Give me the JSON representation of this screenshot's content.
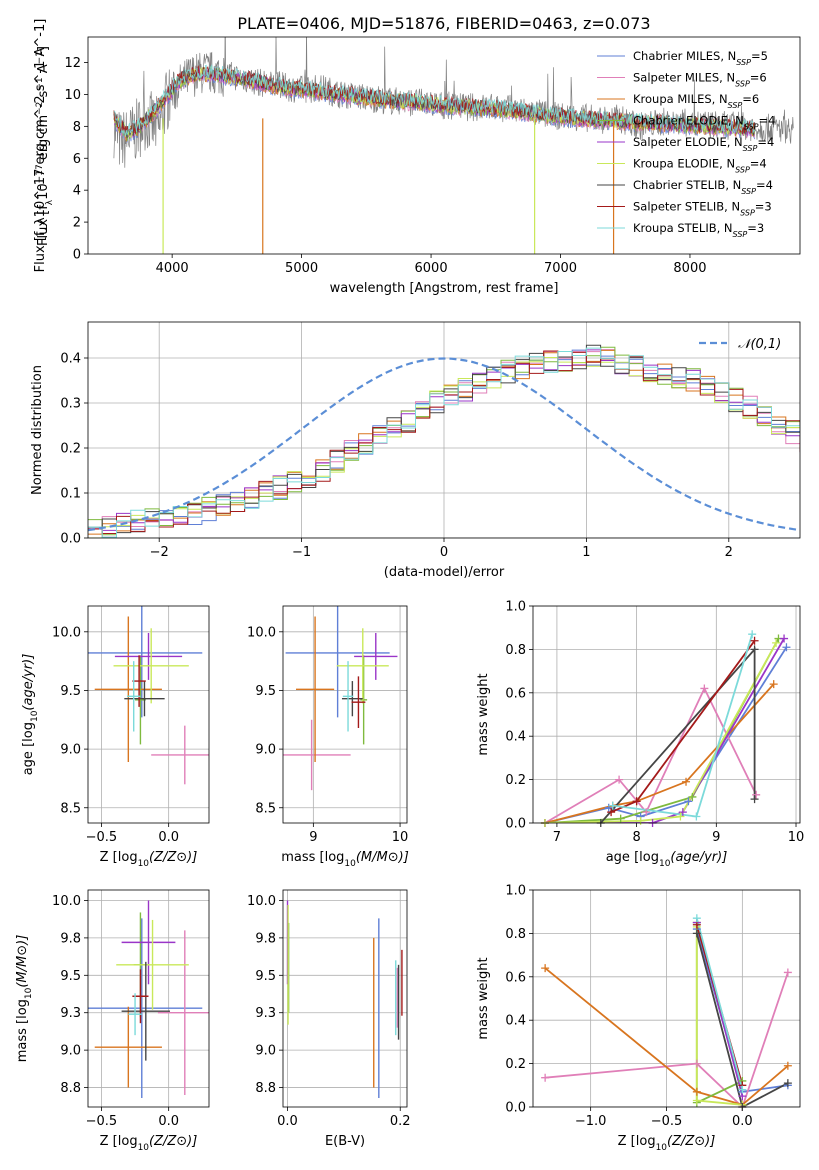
{
  "colors": {
    "chabrier_miles": "#5f7fd6",
    "salpeter_miles": "#e07fb8",
    "kroupa_miles": "#d8751f",
    "chabrier_elodie": "#7fba3e",
    "salpeter_elodie": "#9a35c8",
    "kroupa_elodie": "#c9e85a",
    "chabrier_stelib": "#454545",
    "salpeter_stelib": "#a41a1a",
    "kroupa_stelib": "#7cdada"
  },
  "chart_data": [
    {
      "id": "spectrum",
      "type": "line",
      "title": "PLATE=0406, MJD=51876, FIBERID=0463, z=0.073",
      "xlabel": "wavelength [Angstrom, rest frame]",
      "ylabel": "Flux [f_λ10^-17 erg cm^-2 s^-1 A^-1]",
      "xlim": [
        3350,
        8850
      ],
      "ylim": [
        0,
        13.6
      ],
      "xticks": [
        4000,
        5000,
        6000,
        7000,
        8000
      ],
      "yticks": [
        0,
        2,
        4,
        6,
        8,
        10,
        12
      ],
      "grid": false,
      "legend_position": "top-right",
      "data_x": [
        3550,
        3600,
        3700,
        3800,
        3900,
        3950,
        4050,
        4150,
        4250,
        4350,
        4450,
        4550,
        4700,
        4850,
        5000,
        5150,
        5300,
        5500,
        5700,
        5900,
        6100,
        6300,
        6500,
        6700,
        6850,
        7000,
        7150,
        7300,
        7450,
        7600,
        7800,
        8000,
        8200,
        8400,
        8600,
        8800
      ],
      "data_y": [
        8.0,
        7.0,
        7.5,
        8.5,
        7.8,
        9.5,
        10.5,
        11.2,
        11.4,
        11.3,
        11.2,
        11.0,
        10.7,
        10.5,
        10.3,
        10.4,
        10.0,
        9.8,
        9.6,
        9.5,
        9.3,
        9.2,
        9.2,
        9.0,
        8.8,
        8.6,
        8.6,
        8.4,
        8.5,
        8.0,
        8.3,
        8.2,
        8.1,
        8.0,
        7.9,
        7.8
      ],
      "model_x": [
        3550,
        3650,
        3750,
        3850,
        3950,
        4050,
        4150,
        4300,
        4450,
        4600,
        4750,
        4900,
        5100,
        5300,
        5500,
        5700,
        5900,
        6100,
        6300,
        6500,
        6700,
        6900,
        7100,
        7300,
        7500,
        7700,
        7900,
        8100,
        8300,
        8500
      ],
      "model_y": [
        8.5,
        7.5,
        8.0,
        8.8,
        9.8,
        10.8,
        11.2,
        11.3,
        11.1,
        10.9,
        10.6,
        10.4,
        10.2,
        10.0,
        9.8,
        9.6,
        9.5,
        9.3,
        9.2,
        9.1,
        8.9,
        8.7,
        8.5,
        8.4,
        8.3,
        8.2,
        8.1,
        8.0,
        7.9,
        7.8
      ],
      "series": [
        {
          "name": "Chabrier MILES, N_SSP=5",
          "color_key": "chabrier_miles"
        },
        {
          "name": "Salpeter MILES, N_SSP=6",
          "color_key": "salpeter_miles"
        },
        {
          "name": "Kroupa MILES, N_SSP=6",
          "color_key": "kroupa_miles"
        },
        {
          "name": "Chabrier ELODIE, N_SSP=4",
          "color_key": "chabrier_elodie"
        },
        {
          "name": "Salpeter ELODIE, N_SSP=4",
          "color_key": "salpeter_elodie"
        },
        {
          "name": "Kroupa ELODIE, N_SSP=4",
          "color_key": "kroupa_elodie"
        },
        {
          "name": "Chabrier STELIB, N_SSP=4",
          "color_key": "chabrier_stelib"
        },
        {
          "name": "Salpeter STELIB, N_SSP=3",
          "color_key": "salpeter_stelib"
        },
        {
          "name": "Kroupa STELIB, N_SSP=3",
          "color_key": "kroupa_stelib"
        }
      ],
      "drops": [
        {
          "x": 3930,
          "color_key": "kroupa_elodie"
        },
        {
          "x": 4700,
          "color_key": "kroupa_miles"
        },
        {
          "x": 6800,
          "color_key": "kroupa_elodie"
        },
        {
          "x": 7410,
          "color_key": "kroupa_miles"
        }
      ]
    },
    {
      "id": "histogram",
      "type": "line",
      "xlabel": "(data-model)/error",
      "ylabel": "Normed distribution",
      "xlim": [
        -2.5,
        2.5
      ],
      "ylim": [
        0,
        0.48
      ],
      "xticks": [
        -2,
        -1,
        0,
        1,
        2
      ],
      "yticks": [
        0.0,
        0.1,
        0.2,
        0.3,
        0.4
      ],
      "grid": true,
      "legend_position": "top-right",
      "bin_width": 0.1,
      "bins_start": -2.5,
      "bin_values": [
        0.02,
        0.025,
        0.03,
        0.035,
        0.04,
        0.045,
        0.05,
        0.055,
        0.063,
        0.07,
        0.08,
        0.09,
        0.1,
        0.112,
        0.124,
        0.137,
        0.15,
        0.17,
        0.19,
        0.21,
        0.225,
        0.245,
        0.262,
        0.28,
        0.3,
        0.315,
        0.33,
        0.345,
        0.358,
        0.37,
        0.378,
        0.388,
        0.392,
        0.398,
        0.4,
        0.402,
        0.398,
        0.392,
        0.385,
        0.375,
        0.368,
        0.36,
        0.35,
        0.338,
        0.322,
        0.308,
        0.29,
        0.272,
        0.255,
        0.235,
        0.218,
        0.2,
        0.182,
        0.165,
        0.15,
        0.135,
        0.118,
        0.105,
        0.092,
        0.08,
        0.07,
        0.062,
        0.055,
        0.048,
        0.042,
        0.036,
        0.032,
        0.028,
        0.025,
        0.022
      ],
      "normal_label": "𝒩(0,1)"
    },
    {
      "id": "age-vs-z",
      "type": "scatter",
      "xlabel": "Z [log10(Z/Z⊙)]",
      "ylabel": "age  [log10(age/yr)]",
      "xlim": [
        -0.6,
        0.3
      ],
      "ylim": [
        8.37,
        10.22
      ],
      "xticks": [
        -0.5,
        0.0
      ],
      "yticks": [
        8.5,
        9.0,
        9.5,
        10.0
      ],
      "grid": true,
      "points": [
        {
          "x": -0.2,
          "y": 9.82,
          "xerr": 0.45,
          "yerr": 0.55,
          "color_key": "chabrier_miles"
        },
        {
          "x": 0.12,
          "y": 8.95,
          "xerr": 0.25,
          "yerr": 0.25,
          "color_key": "salpeter_miles"
        },
        {
          "x": -0.3,
          "y": 9.51,
          "xerr": 0.25,
          "yerr": 0.62,
          "color_key": "kroupa_miles"
        },
        {
          "x": -0.21,
          "y": 9.42,
          "xerr": 0.04,
          "yerr": 0.38,
          "color_key": "chabrier_elodie"
        },
        {
          "x": -0.15,
          "y": 9.79,
          "xerr": 0.25,
          "yerr": 0.2,
          "color_key": "salpeter_elodie"
        },
        {
          "x": -0.13,
          "y": 9.71,
          "xerr": 0.28,
          "yerr": 0.32,
          "color_key": "kroupa_elodie"
        },
        {
          "x": -0.18,
          "y": 9.43,
          "xerr": 0.15,
          "yerr": 0.15,
          "color_key": "chabrier_stelib"
        },
        {
          "x": -0.22,
          "y": 9.58,
          "xerr": 0.05,
          "yerr": 0.22,
          "color_key": "salpeter_stelib"
        },
        {
          "x": -0.26,
          "y": 9.45,
          "xerr": 0.05,
          "yerr": 0.3,
          "color_key": "kroupa_stelib"
        }
      ]
    },
    {
      "id": "age-vs-mass",
      "type": "scatter",
      "xlabel": "mass [log10(M/M⊙)]",
      "ylabel": "",
      "xlim": [
        8.65,
        10.08
      ],
      "ylim": [
        8.37,
        10.22
      ],
      "xticks": [
        9,
        10
      ],
      "yticks": [
        8.5,
        9.0,
        9.5,
        10.0
      ],
      "grid": true,
      "points": [
        {
          "x": 9.28,
          "y": 9.82,
          "xerr": 0.6,
          "yerr": 0.55,
          "color_key": "chabrier_miles"
        },
        {
          "x": 8.98,
          "y": 8.95,
          "xerr": 0.45,
          "yerr": 0.3,
          "color_key": "salpeter_miles"
        },
        {
          "x": 9.02,
          "y": 9.51,
          "xerr": 0.22,
          "yerr": 0.62,
          "color_key": "kroupa_miles"
        },
        {
          "x": 9.58,
          "y": 9.42,
          "xerr": 0.04,
          "yerr": 0.38,
          "color_key": "chabrier_elodie"
        },
        {
          "x": 9.72,
          "y": 9.79,
          "xerr": 0.25,
          "yerr": 0.2,
          "color_key": "salpeter_elodie"
        },
        {
          "x": 9.57,
          "y": 9.71,
          "xerr": 0.3,
          "yerr": 0.32,
          "color_key": "kroupa_elodie"
        },
        {
          "x": 9.45,
          "y": 9.43,
          "xerr": 0.12,
          "yerr": 0.15,
          "color_key": "chabrier_stelib"
        },
        {
          "x": 9.52,
          "y": 9.4,
          "xerr": 0.08,
          "yerr": 0.22,
          "color_key": "salpeter_stelib"
        },
        {
          "x": 9.4,
          "y": 9.45,
          "xerr": 0.06,
          "yerr": 0.3,
          "color_key": "kroupa_stelib"
        }
      ]
    },
    {
      "id": "massweight-vs-age",
      "type": "line",
      "xlabel": "age  [log10(age/yr)]",
      "ylabel": "mass weight",
      "xlim": [
        6.7,
        10.05
      ],
      "ylim": [
        0.0,
        1.0
      ],
      "xticks": [
        7,
        8,
        9,
        10
      ],
      "yticks": [
        0.0,
        0.2,
        0.4,
        0.6,
        0.8,
        1.0
      ],
      "grid": true,
      "series": [
        {
          "name": "Chabrier MILES",
          "color_key": "chabrier_miles",
          "x": [
            6.85,
            7.65,
            8.05,
            8.65,
            9.88
          ],
          "y": [
            0.0,
            0.07,
            0.03,
            0.1,
            0.81
          ]
        },
        {
          "name": "Salpeter MILES",
          "color_key": "salpeter_miles",
          "x": [
            6.85,
            7.78,
            8.12,
            8.85,
            9.5
          ],
          "y": [
            0.0,
            0.2,
            0.05,
            0.62,
            0.13
          ]
        },
        {
          "name": "Kroupa MILES",
          "color_key": "kroupa_miles",
          "x": [
            6.85,
            7.7,
            8.0,
            8.62,
            9.72
          ],
          "y": [
            0.0,
            0.08,
            0.1,
            0.19,
            0.64
          ]
        },
        {
          "name": "Chabrier ELODIE",
          "color_key": "chabrier_elodie",
          "x": [
            6.85,
            7.8,
            8.7,
            9.78
          ],
          "y": [
            0.0,
            0.02,
            0.12,
            0.85
          ]
        },
        {
          "name": "Salpeter ELODIE",
          "color_key": "salpeter_elodie",
          "x": [
            6.85,
            8.2,
            8.58,
            9.85
          ],
          "y": [
            0.0,
            0.0,
            0.05,
            0.85
          ]
        },
        {
          "name": "Kroupa ELODIE",
          "color_key": "kroupa_elodie",
          "x": [
            6.85,
            8.05,
            8.55,
            9.75
          ],
          "y": [
            0.0,
            0.01,
            0.03,
            0.83
          ]
        },
        {
          "name": "Chabrier STELIB",
          "color_key": "chabrier_stelib",
          "x": [
            7.55,
            9.48,
            9.48
          ],
          "y": [
            0.0,
            0.8,
            0.11
          ]
        },
        {
          "name": "Salpeter STELIB",
          "color_key": "salpeter_stelib",
          "x": [
            7.68,
            8.0,
            9.48
          ],
          "y": [
            0.05,
            0.1,
            0.84
          ]
        },
        {
          "name": "Kroupa STELIB",
          "color_key": "kroupa_stelib",
          "x": [
            7.7,
            8.75,
            9.45
          ],
          "y": [
            0.08,
            0.03,
            0.87
          ]
        }
      ]
    },
    {
      "id": "mass-vs-z",
      "type": "scatter",
      "xlabel": "Z [log10(Z/Z⊙)]",
      "ylabel": "mass [log10(M/M⊙)]",
      "xlim": [
        -0.6,
        0.3
      ],
      "ylim": [
        8.62,
        10.07
      ],
      "xticks": [
        -0.5,
        0.0
      ],
      "yticks": [
        8.75,
        9.0,
        9.25,
        9.5,
        9.75,
        10.0
      ],
      "grid": true,
      "points": [
        {
          "x": -0.2,
          "y": 9.28,
          "xerr": 0.45,
          "yerr": 0.6,
          "color_key": "chabrier_miles"
        },
        {
          "x": 0.12,
          "y": 9.25,
          "xerr": 0.2,
          "yerr": 0.55,
          "color_key": "salpeter_miles"
        },
        {
          "x": -0.3,
          "y": 9.02,
          "xerr": 0.25,
          "yerr": 0.27,
          "color_key": "kroupa_miles"
        },
        {
          "x": -0.21,
          "y": 9.57,
          "xerr": 0.05,
          "yerr": 0.35,
          "color_key": "chabrier_elodie"
        },
        {
          "x": -0.15,
          "y": 9.72,
          "xerr": 0.2,
          "yerr": 0.28,
          "color_key": "salpeter_elodie"
        },
        {
          "x": -0.12,
          "y": 9.57,
          "xerr": 0.27,
          "yerr": 0.3,
          "color_key": "kroupa_elodie"
        },
        {
          "x": -0.17,
          "y": 9.26,
          "xerr": 0.18,
          "yerr": 0.33,
          "color_key": "chabrier_stelib"
        },
        {
          "x": -0.21,
          "y": 9.36,
          "xerr": 0.06,
          "yerr": 0.18,
          "color_key": "salpeter_stelib"
        },
        {
          "x": -0.25,
          "y": 9.24,
          "xerr": 0.05,
          "yerr": 0.14,
          "color_key": "kroupa_stelib"
        }
      ]
    },
    {
      "id": "mass-vs-ebv",
      "type": "scatter",
      "xlabel": "E(B-V)",
      "ylabel": "",
      "xlim": [
        -0.008,
        0.212
      ],
      "ylim": [
        8.62,
        10.07
      ],
      "xticks": [
        0.0,
        0.2
      ],
      "yticks": [
        8.75,
        9.0,
        9.25,
        9.5,
        9.75,
        10.0
      ],
      "grid": true,
      "points": [
        {
          "x": 0.162,
          "y": 9.28,
          "xerr": 0.0,
          "yerr": 0.6,
          "color_key": "chabrier_miles"
        },
        {
          "x": 0.195,
          "y": 9.35,
          "xerr": 0.0,
          "yerr": 0.2,
          "color_key": "salpeter_miles"
        },
        {
          "x": 0.153,
          "y": 9.25,
          "xerr": 0.0,
          "yerr": 0.5,
          "color_key": "kroupa_miles"
        },
        {
          "x": 0.002,
          "y": 9.55,
          "xerr": 0.0,
          "yerr": 0.3,
          "color_key": "chabrier_elodie"
        },
        {
          "x": 0.0,
          "y": 9.72,
          "xerr": 0.0,
          "yerr": 0.28,
          "color_key": "salpeter_elodie"
        },
        {
          "x": 0.001,
          "y": 9.57,
          "xerr": 0.0,
          "yerr": 0.4,
          "color_key": "kroupa_elodie"
        },
        {
          "x": 0.197,
          "y": 9.32,
          "xerr": 0.0,
          "yerr": 0.25,
          "color_key": "chabrier_stelib"
        },
        {
          "x": 0.203,
          "y": 9.45,
          "xerr": 0.0,
          "yerr": 0.22,
          "color_key": "salpeter_stelib"
        },
        {
          "x": 0.192,
          "y": 9.35,
          "xerr": 0.0,
          "yerr": 0.25,
          "color_key": "kroupa_stelib"
        }
      ]
    },
    {
      "id": "massweight-vs-z",
      "type": "line",
      "xlabel": "Z [log10(Z/Z⊙)]",
      "ylabel": "mass weight",
      "xlim": [
        -1.38,
        0.38
      ],
      "ylim": [
        0.0,
        1.0
      ],
      "xticks": [
        -1.0,
        -0.5,
        0.0
      ],
      "yticks": [
        0.0,
        0.2,
        0.4,
        0.6,
        0.8,
        1.0
      ],
      "grid": true,
      "series": [
        {
          "name": "Chabrier MILES",
          "color_key": "chabrier_miles",
          "x": [
            -0.3,
            0.0,
            0.3
          ],
          "y": [
            0.82,
            0.07,
            0.1
          ]
        },
        {
          "name": "Salpeter MILES",
          "color_key": "salpeter_miles",
          "x": [
            -1.3,
            -0.3,
            0.0,
            0.3
          ],
          "y": [
            0.135,
            0.2,
            0.0,
            0.62
          ]
        },
        {
          "name": "Kroupa MILES",
          "color_key": "kroupa_miles",
          "x": [
            -1.3,
            -0.3,
            0.0,
            0.3
          ],
          "y": [
            0.64,
            0.07,
            0.01,
            0.19
          ]
        },
        {
          "name": "Chabrier ELODIE",
          "color_key": "chabrier_elodie",
          "x": [
            -0.3,
            -0.3,
            0.0
          ],
          "y": [
            0.85,
            0.02,
            0.12
          ]
        },
        {
          "name": "Salpeter ELODIE",
          "color_key": "salpeter_elodie",
          "x": [
            -0.3,
            0.0
          ],
          "y": [
            0.85,
            0.05
          ]
        },
        {
          "name": "Kroupa ELODIE",
          "color_key": "kroupa_elodie",
          "x": [
            -0.3,
            -0.3,
            0.0
          ],
          "y": [
            0.83,
            0.03,
            0.01
          ]
        },
        {
          "name": "Chabrier STELIB",
          "color_key": "chabrier_stelib",
          "x": [
            -0.3,
            0.0,
            0.3
          ],
          "y": [
            0.8,
            0.0,
            0.11
          ]
        },
        {
          "name": "Salpeter STELIB",
          "color_key": "salpeter_stelib",
          "x": [
            -0.3,
            0.0
          ],
          "y": [
            0.84,
            0.1
          ]
        },
        {
          "name": "Kroupa STELIB",
          "color_key": "kroupa_stelib",
          "x": [
            -0.3,
            0.0
          ],
          "y": [
            0.87,
            0.08
          ]
        }
      ]
    }
  ]
}
